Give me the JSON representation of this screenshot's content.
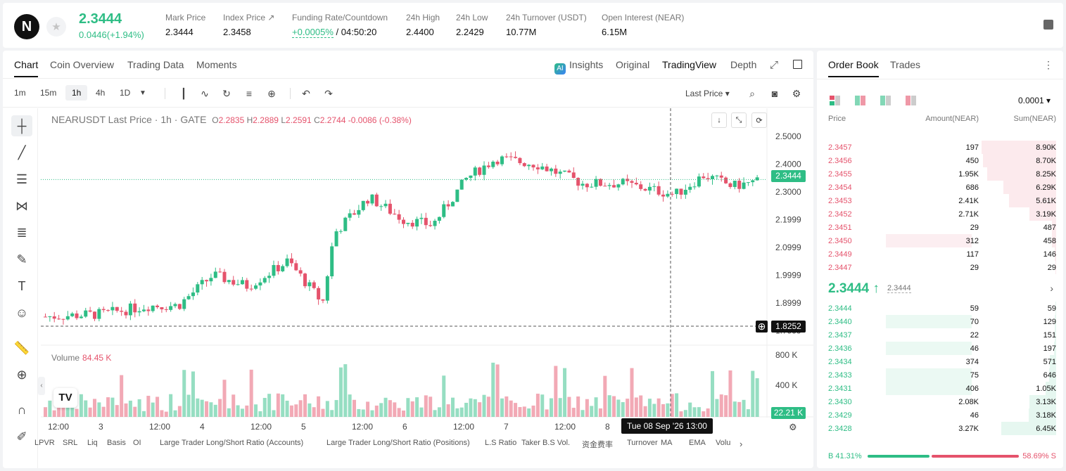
{
  "symbol": {
    "logo": "N",
    "price": "2.3444",
    "change": "0.0446(+1.94%)"
  },
  "stats": [
    {
      "label": "Mark Price",
      "value": "2.3444"
    },
    {
      "label": "Index Price ↗",
      "value": "2.3458"
    },
    {
      "label": "Funding Rate/Countdown",
      "value": "+0.0005%",
      "value2": "/ 04:50:20"
    },
    {
      "label": "24h High",
      "value": "2.4400"
    },
    {
      "label": "24h Low",
      "value": "2.2429"
    },
    {
      "label": "24h Turnover (USDT)",
      "value": "10.77M"
    },
    {
      "label": "Open Interest (NEAR)",
      "value": "6.15M"
    }
  ],
  "tabs": [
    "Chart",
    "Coin Overview",
    "Trading Data",
    "Moments"
  ],
  "views": {
    "insights": "Insights",
    "original": "Original",
    "tradingview": "TradingView",
    "depth": "Depth"
  },
  "timeframes": [
    "1m",
    "15m",
    "1h",
    "4h",
    "1D"
  ],
  "price_type": "Last Price",
  "legend": {
    "title": "NEARUSDT Last Price · 1h · GATE",
    "o": "2.2835",
    "h": "2.2889",
    "l": "2.2591",
    "c": "2.2744",
    "chg": "-0.0086 (-0.38%)"
  },
  "volume": {
    "label": "Volume",
    "value": "84.45 K"
  },
  "colors": {
    "up": "#2ebd85",
    "down": "#e5536c"
  },
  "chart_data": {
    "type": "candlestick",
    "y_ticks": [
      "2.5000",
      "2.4000",
      "2.3000",
      "2.1999",
      "2.0999",
      "1.9999",
      "1.8999",
      "1.7999"
    ],
    "y_range": [
      1.76,
      2.52
    ],
    "vol_ticks": [
      "800 K",
      "400 K"
    ],
    "x_labels": [
      "12:00",
      "3",
      "12:00",
      "4",
      "12:00",
      "5",
      "12:00",
      "6",
      "12:00",
      "7",
      "12:00",
      "8",
      "12:"
    ],
    "last_price": "2.3444",
    "crosshair_price": "1.8252",
    "crosshair_time": "Tue 08 Sep '26   13:00",
    "last_volume": "22.21 K"
  },
  "indicators": [
    "LPVR",
    "SRL",
    "Liq",
    "Basis",
    "OI",
    "Large Trader Long/Short Ratio (Accounts)",
    "Large Trader Long/Short Ratio (Positions)",
    "L.S Ratio",
    "Taker B.S Vol.",
    "资金费率",
    "Turnover",
    "MA",
    "EMA",
    "Volu"
  ],
  "orderbook": {
    "tabs": [
      "Order Book",
      "Trades"
    ],
    "precision": "0.0001",
    "headers": [
      "Price",
      "Amount(NEAR)",
      "Sum(NEAR)"
    ],
    "asks": [
      {
        "p": "2.3457",
        "a": "197",
        "s": "8.90K",
        "sd": 0.92,
        "ad": 0
      },
      {
        "p": "2.3456",
        "a": "450",
        "s": "8.70K",
        "sd": 0.9,
        "ad": 0
      },
      {
        "p": "2.3455",
        "a": "1.95K",
        "s": "8.25K",
        "sd": 0.85,
        "ad": 0
      },
      {
        "p": "2.3454",
        "a": "686",
        "s": "6.29K",
        "sd": 0.65,
        "ad": 0
      },
      {
        "p": "2.3453",
        "a": "2.41K",
        "s": "5.61K",
        "sd": 0.58,
        "ad": 0
      },
      {
        "p": "2.3452",
        "a": "2.71K",
        "s": "3.19K",
        "sd": 0.33,
        "ad": 0
      },
      {
        "p": "2.3451",
        "a": "29",
        "s": "487",
        "sd": 0.05,
        "ad": 0
      },
      {
        "p": "2.3450",
        "a": "312",
        "s": "458",
        "sd": 0.05,
        "ad": 0.37
      },
      {
        "p": "2.3449",
        "a": "117",
        "s": "146",
        "sd": 0.02,
        "ad": 0
      },
      {
        "p": "2.3447",
        "a": "29",
        "s": "29",
        "sd": 0.01,
        "ad": 0
      }
    ],
    "mid_price": "2.3444 ↑",
    "mark": "2.3444",
    "bids": [
      {
        "p": "2.3444",
        "a": "59",
        "s": "59",
        "sd": 0.01,
        "ad": 0
      },
      {
        "p": "2.3440",
        "a": "70",
        "s": "129",
        "sd": 0.02,
        "ad": 0.37
      },
      {
        "p": "2.3437",
        "a": "22",
        "s": "151",
        "sd": 0.02,
        "ad": 0
      },
      {
        "p": "2.3436",
        "a": "46",
        "s": "197",
        "sd": 0.03,
        "ad": 0.37
      },
      {
        "p": "2.3434",
        "a": "374",
        "s": "571",
        "sd": 0.08,
        "ad": 0
      },
      {
        "p": "2.3433",
        "a": "75",
        "s": "646",
        "sd": 0.09,
        "ad": 0.37
      },
      {
        "p": "2.3431",
        "a": "406",
        "s": "1.05K",
        "sd": 0.13,
        "ad": 0.37
      },
      {
        "p": "2.3430",
        "a": "2.08K",
        "s": "3.13K",
        "sd": 0.33,
        "ad": 0
      },
      {
        "p": "2.3429",
        "a": "46",
        "s": "3.18K",
        "sd": 0.34,
        "ad": 0
      },
      {
        "p": "2.3428",
        "a": "3.27K",
        "s": "6.45K",
        "sd": 0.68,
        "ad": 0
      }
    ],
    "buy_ratio": "B 41.31%",
    "sell_ratio": "58.69% S",
    "buy_frac": 0.4131
  }
}
